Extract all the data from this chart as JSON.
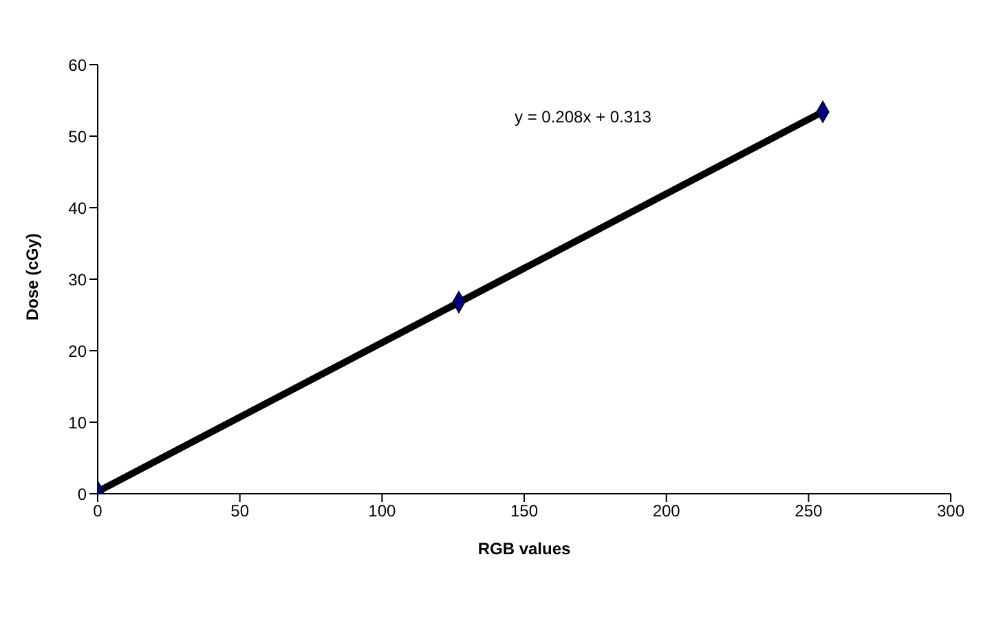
{
  "chart_data": {
    "type": "scatter",
    "xlabel": "RGB values",
    "ylabel": "Dose (cGy)",
    "xlim": [
      0,
      300
    ],
    "xticks": [
      0,
      50,
      100,
      150,
      200,
      250,
      300
    ],
    "ylim": [
      0,
      60
    ],
    "yticks": [
      0,
      10,
      20,
      30,
      40,
      50,
      60
    ],
    "grid": false,
    "series": [
      {
        "type": "line",
        "color": "#000000",
        "x": [
          0,
          255
        ],
        "values": [
          0.3,
          53.4
        ],
        "marker": "none",
        "line_style": "solid"
      },
      {
        "color": "#000080",
        "x": [
          0,
          127,
          255
        ],
        "values": [
          0.3,
          26.8,
          53.4
        ],
        "marker": "diamond"
      }
    ],
    "annotations": [
      "y = 0.208x + 0.313"
    ]
  }
}
